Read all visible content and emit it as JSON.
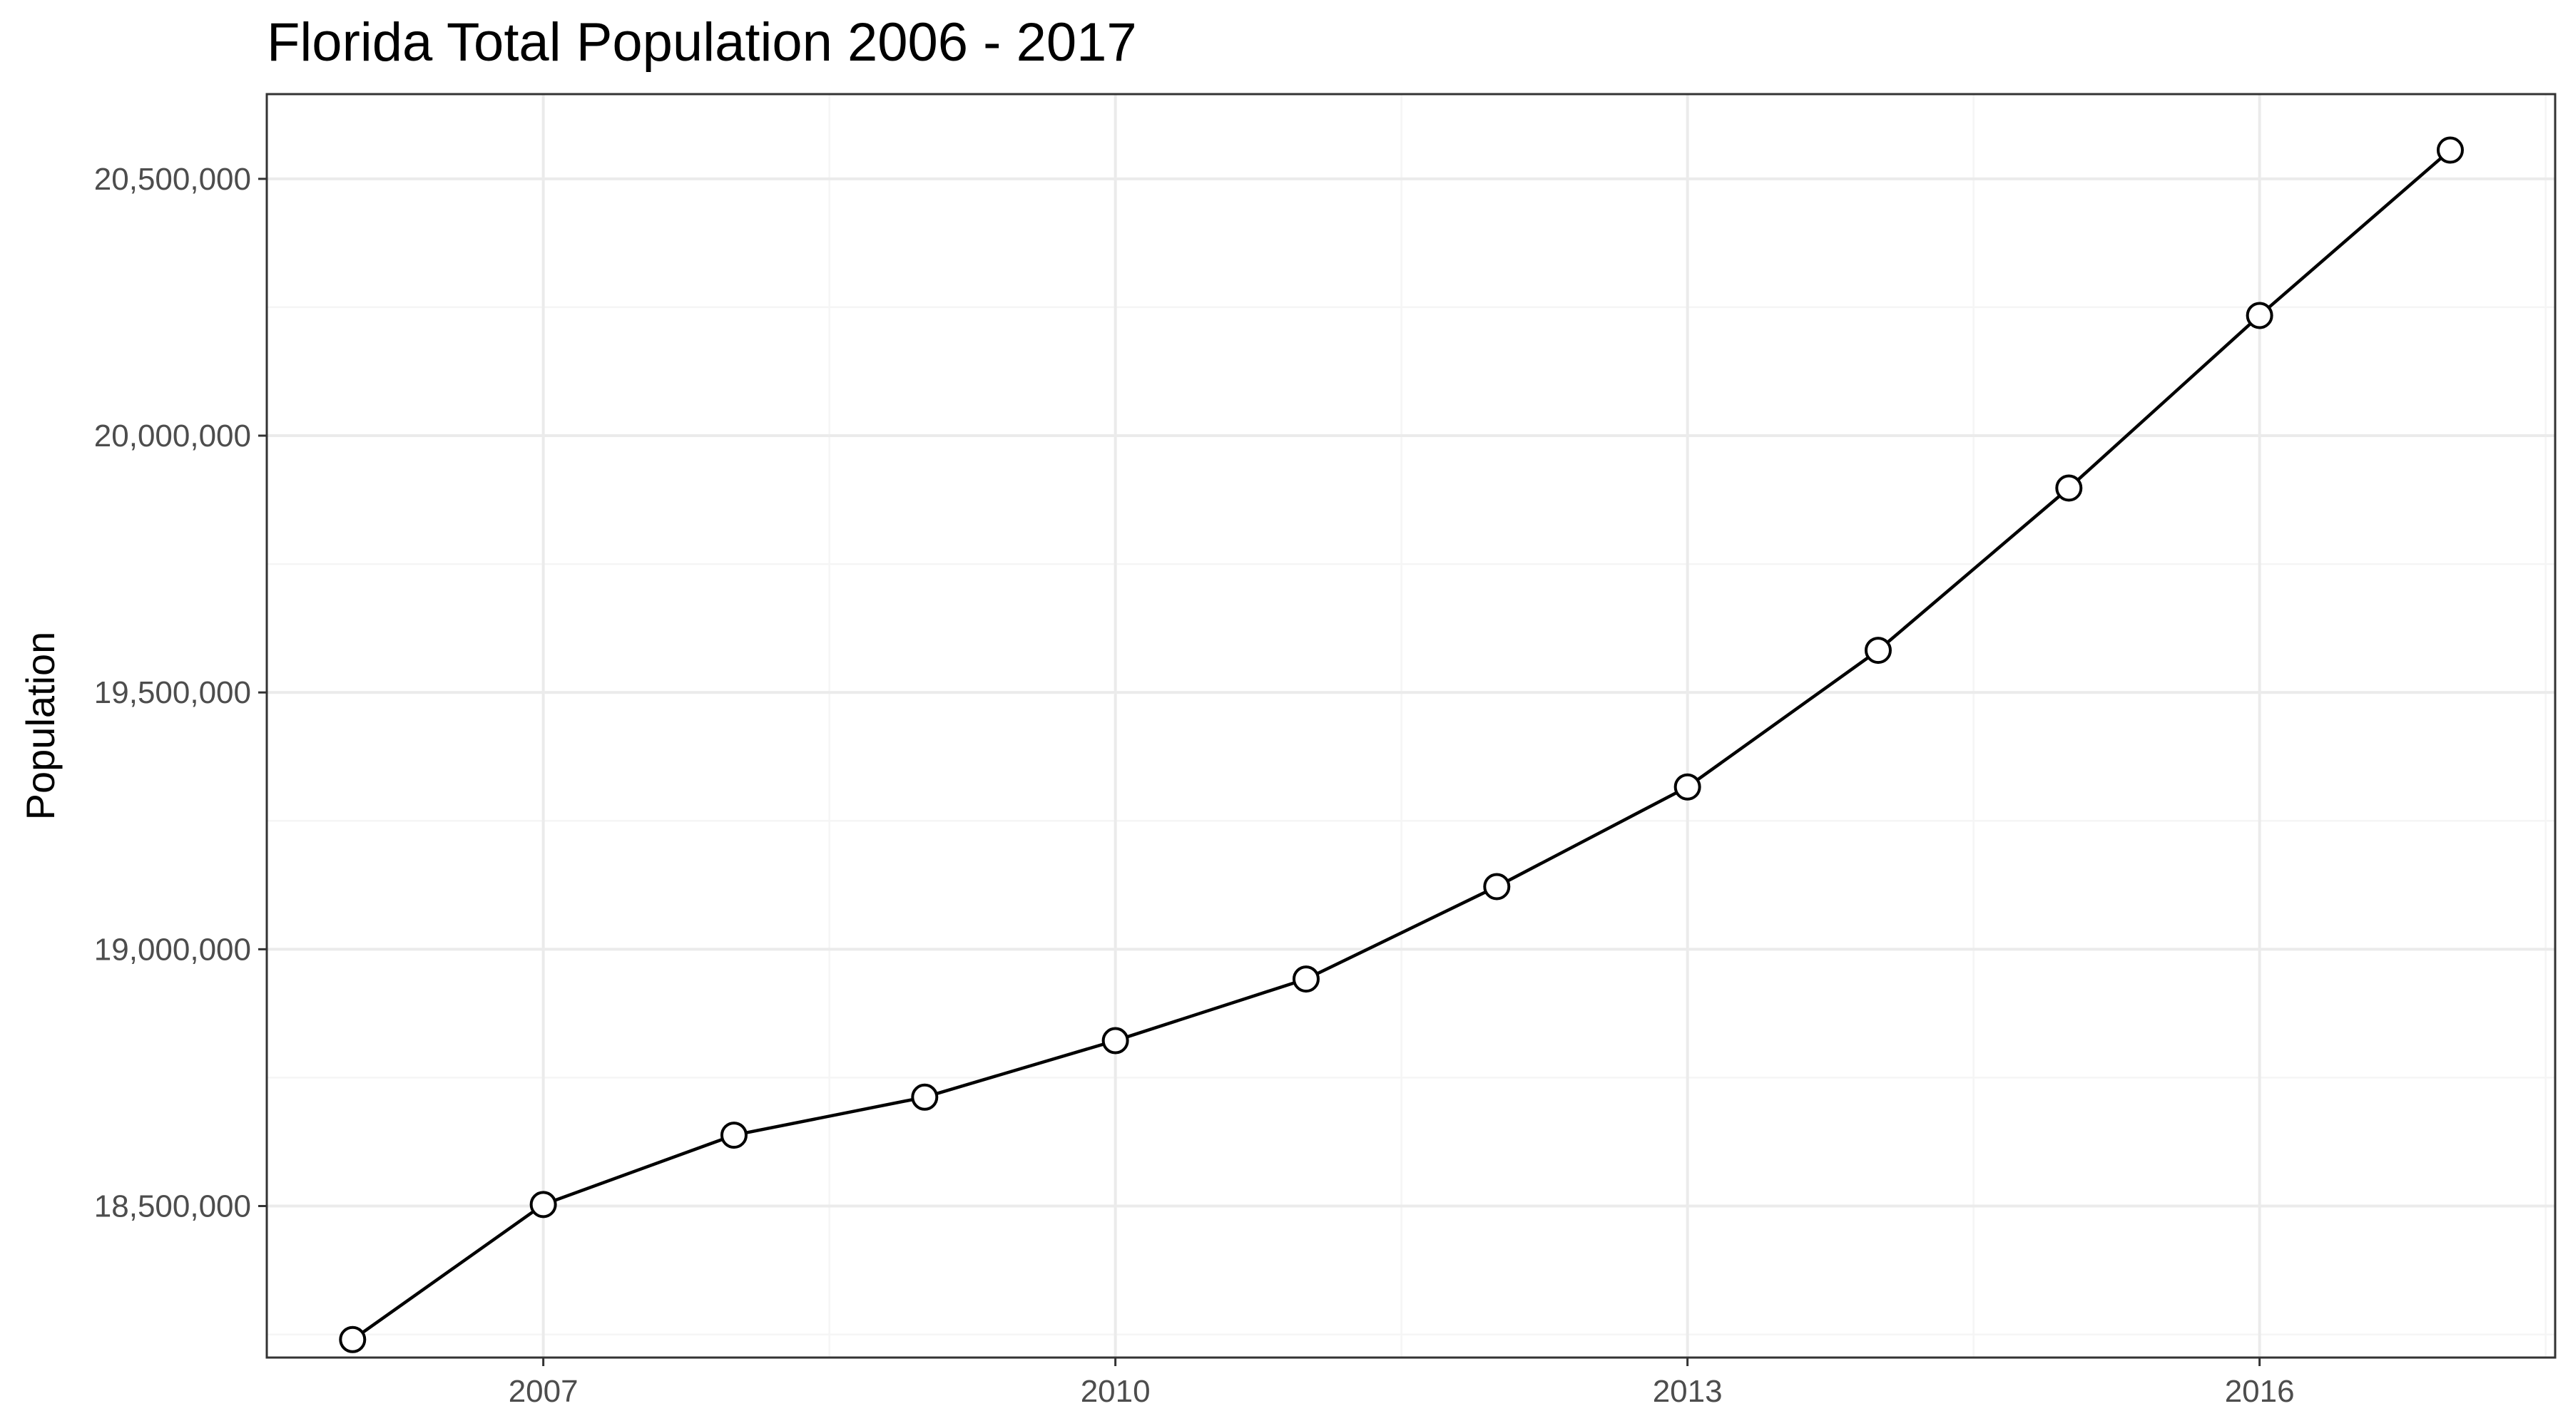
{
  "chart_data": {
    "type": "line",
    "title": "Florida Total Population 2006 - 2017",
    "xlabel": "",
    "ylabel": "Population",
    "x": [
      2006,
      2007,
      2008,
      2009,
      2010,
      2011,
      2012,
      2013,
      2014,
      2015,
      2016,
      2017
    ],
    "series": [
      {
        "values": [
          18240000,
          18503000,
          18638000,
          18712000,
          18822000,
          18942000,
          19122000,
          19316000,
          19582000,
          19898000,
          20234000,
          20556000
        ]
      }
    ],
    "xlim": [
      2005.55,
      2017.55
    ],
    "ylim": [
      18205000,
      20665000
    ],
    "x_ticks": [
      2007,
      2010,
      2013,
      2016
    ],
    "x_tick_labels": [
      "2007",
      "2010",
      "2013",
      "2016"
    ],
    "y_ticks": [
      18500000,
      19000000,
      19500000,
      20000000,
      20500000
    ],
    "y_tick_labels": [
      "18,500,000",
      "19,000,000",
      "19,500,000",
      "20,000,000",
      "20,500,000"
    ],
    "grid": true,
    "legend": "none",
    "colors": {
      "line": "#000000",
      "marker_fill": "#ffffff",
      "grid_major": "#ebebeb",
      "grid_minor": "#f5f5f5",
      "panel_border": "#333333",
      "tick_text": "#4d4d4d"
    }
  }
}
